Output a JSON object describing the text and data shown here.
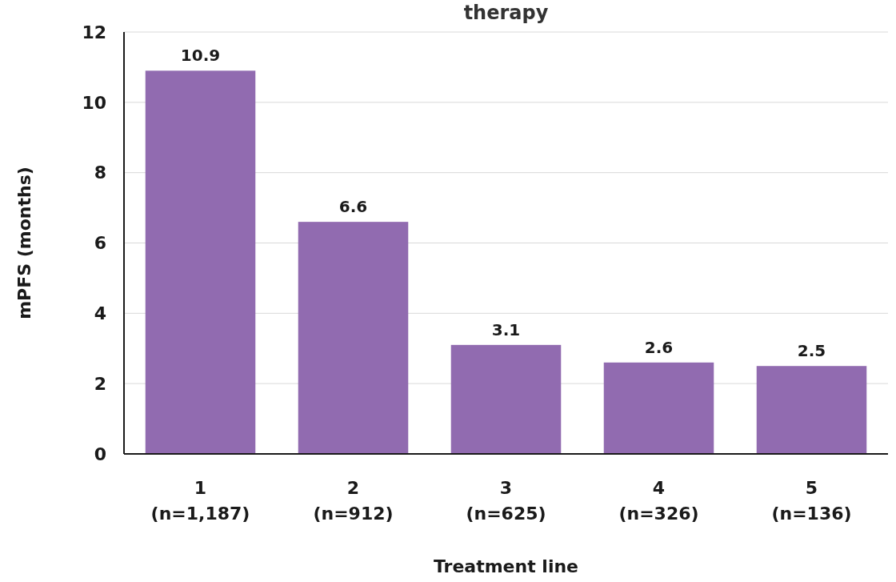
{
  "chart_data": {
    "type": "bar",
    "title": "therapy",
    "xlabel": "Treatment line",
    "ylabel": "mPFS (months)",
    "categories": [
      "1\n(n=1,187)",
      "2\n(n=912)",
      "3\n(n=625)",
      "4\n(n=326)",
      "5\n(n=136)"
    ],
    "values": [
      10.9,
      6.6,
      3.1,
      2.6,
      2.5
    ],
    "color": "#916bb0",
    "ylim": [
      0,
      12
    ],
    "yticks": [
      0,
      2,
      4,
      6,
      8,
      10,
      12
    ],
    "grid": "y",
    "data_labels": true
  }
}
